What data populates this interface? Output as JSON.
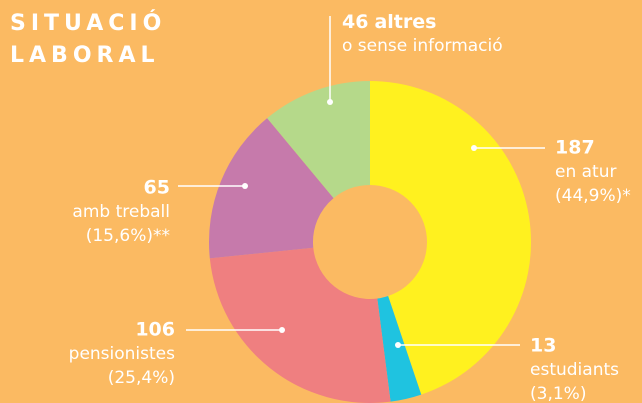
{
  "chart_data": {
    "type": "donut",
    "title": [
      "SITUACIÓ",
      "LABORAL"
    ],
    "categories": [
      "en atur",
      "estudiants",
      "pensionistes",
      "amb treball",
      "altres"
    ],
    "values": [
      187,
      13,
      106,
      65,
      46
    ],
    "details": [
      "(44,9%)*",
      "(3,1%)",
      "(25,4%)",
      "(15,6%)**",
      "o sense informació"
    ],
    "colors": [
      "#fff11f",
      "#1fc3e0",
      "#ef7f80",
      "#c67aab",
      "#b5d98a"
    ],
    "background": "#fbba62"
  }
}
